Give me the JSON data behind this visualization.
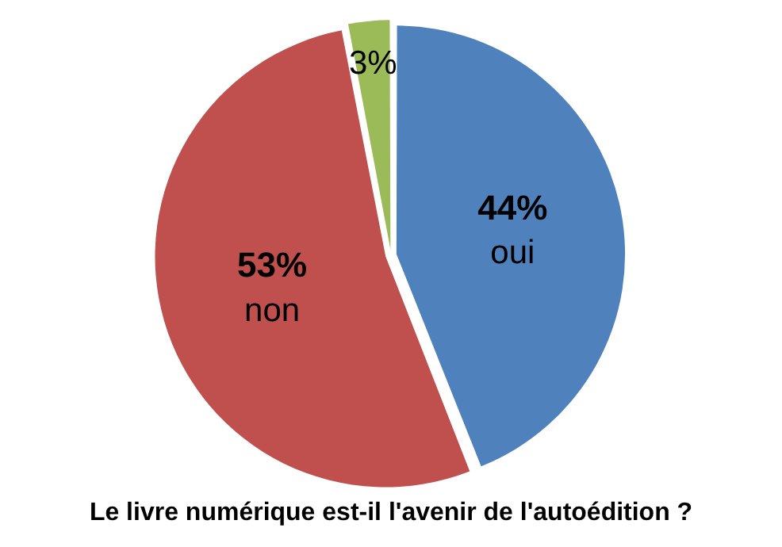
{
  "chart_data": {
    "type": "pie",
    "title": "Le livre numérique est-il l'avenir de l'autoédition ?",
    "categories": [
      "oui",
      "non",
      null
    ],
    "values": [
      44,
      53,
      3
    ],
    "colors": [
      "#4f81bd",
      "#c0504d",
      "#9bbb59"
    ],
    "value_labels": [
      "44%",
      "53%",
      "3%"
    ],
    "legend": false
  }
}
